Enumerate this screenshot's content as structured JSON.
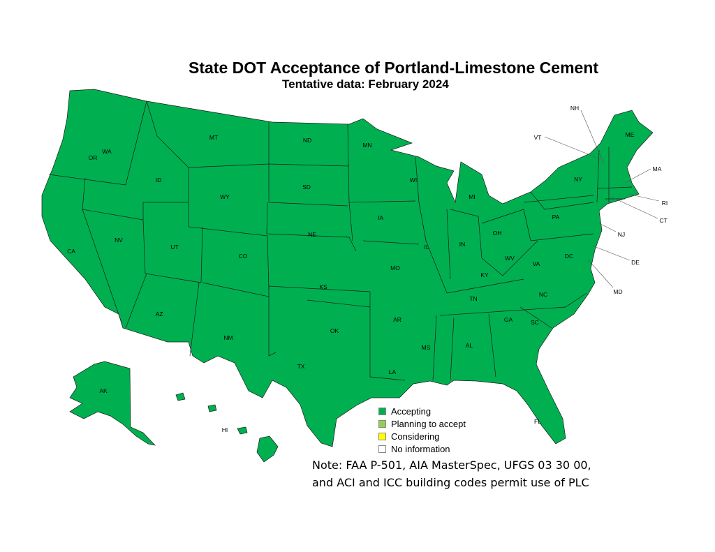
{
  "title": "State DOT Acceptance of Portland-Limestone Cement",
  "subtitle": "Tentative data:  February 2024",
  "colors": {
    "Accepting": "#00b050",
    "Planning to accept": "#92d050",
    "Considering": "#ffff00",
    "No information": "#ffffff",
    "border": "#1a1a1a"
  },
  "legend": [
    {
      "label": "Accepting",
      "color": "#00b050"
    },
    {
      "label": "Planning to accept",
      "color": "#92d050"
    },
    {
      "label": "Considering",
      "color": "#ffff00"
    },
    {
      "label": "No information",
      "color": "#ffffff"
    }
  ],
  "states": [
    {
      "abbr": "WA",
      "status": "Accepting"
    },
    {
      "abbr": "OR",
      "status": "Accepting"
    },
    {
      "abbr": "CA",
      "status": "Accepting"
    },
    {
      "abbr": "NV",
      "status": "Accepting"
    },
    {
      "abbr": "ID",
      "status": "Accepting"
    },
    {
      "abbr": "MT",
      "status": "Accepting"
    },
    {
      "abbr": "WY",
      "status": "Accepting"
    },
    {
      "abbr": "UT",
      "status": "Accepting"
    },
    {
      "abbr": "AZ",
      "status": "Accepting"
    },
    {
      "abbr": "CO",
      "status": "Accepting"
    },
    {
      "abbr": "NM",
      "status": "Accepting"
    },
    {
      "abbr": "ND",
      "status": "Accepting"
    },
    {
      "abbr": "SD",
      "status": "Accepting"
    },
    {
      "abbr": "NE",
      "status": "Accepting"
    },
    {
      "abbr": "KS",
      "status": "Accepting"
    },
    {
      "abbr": "OK",
      "status": "Accepting"
    },
    {
      "abbr": "TX",
      "status": "Accepting"
    },
    {
      "abbr": "MN",
      "status": "Accepting"
    },
    {
      "abbr": "IA",
      "status": "Accepting"
    },
    {
      "abbr": "MO",
      "status": "Accepting"
    },
    {
      "abbr": "AR",
      "status": "Accepting"
    },
    {
      "abbr": "LA",
      "status": "Accepting"
    },
    {
      "abbr": "WI",
      "status": "Accepting"
    },
    {
      "abbr": "IL",
      "status": "Accepting"
    },
    {
      "abbr": "MI",
      "status": "Accepting"
    },
    {
      "abbr": "IN",
      "status": "Accepting"
    },
    {
      "abbr": "OH",
      "status": "Accepting"
    },
    {
      "abbr": "KY",
      "status": "Accepting"
    },
    {
      "abbr": "TN",
      "status": "Accepting"
    },
    {
      "abbr": "MS",
      "status": "Accepting"
    },
    {
      "abbr": "AL",
      "status": "Accepting"
    },
    {
      "abbr": "GA",
      "status": "Accepting"
    },
    {
      "abbr": "FL",
      "status": "Accepting"
    },
    {
      "abbr": "SC",
      "status": "Accepting"
    },
    {
      "abbr": "NC",
      "status": "Accepting"
    },
    {
      "abbr": "VA",
      "status": "Accepting"
    },
    {
      "abbr": "WV",
      "status": "Accepting"
    },
    {
      "abbr": "PA",
      "status": "Accepting"
    },
    {
      "abbr": "NY",
      "status": "Accepting"
    },
    {
      "abbr": "ME",
      "status": "Accepting"
    },
    {
      "abbr": "AK",
      "status": "Accepting"
    },
    {
      "abbr": "HI",
      "status": "Accepting"
    },
    {
      "abbr": "DC",
      "status": "Accepting"
    },
    {
      "abbr": "NH",
      "status": "Accepting"
    },
    {
      "abbr": "VT",
      "status": "Accepting"
    },
    {
      "abbr": "MA",
      "status": "Accepting"
    },
    {
      "abbr": "RI",
      "status": "Accepting"
    },
    {
      "abbr": "CT",
      "status": "Accepting"
    },
    {
      "abbr": "NJ",
      "status": "Accepting"
    },
    {
      "abbr": "DE",
      "status": "Accepting"
    },
    {
      "abbr": "MD",
      "status": "Accepting"
    }
  ],
  "note": [
    "Note:  FAA P-501, AIA MasterSpec, UFGS 03 30 00,",
    "and ACI and ICC building codes permit use of PLC"
  ]
}
